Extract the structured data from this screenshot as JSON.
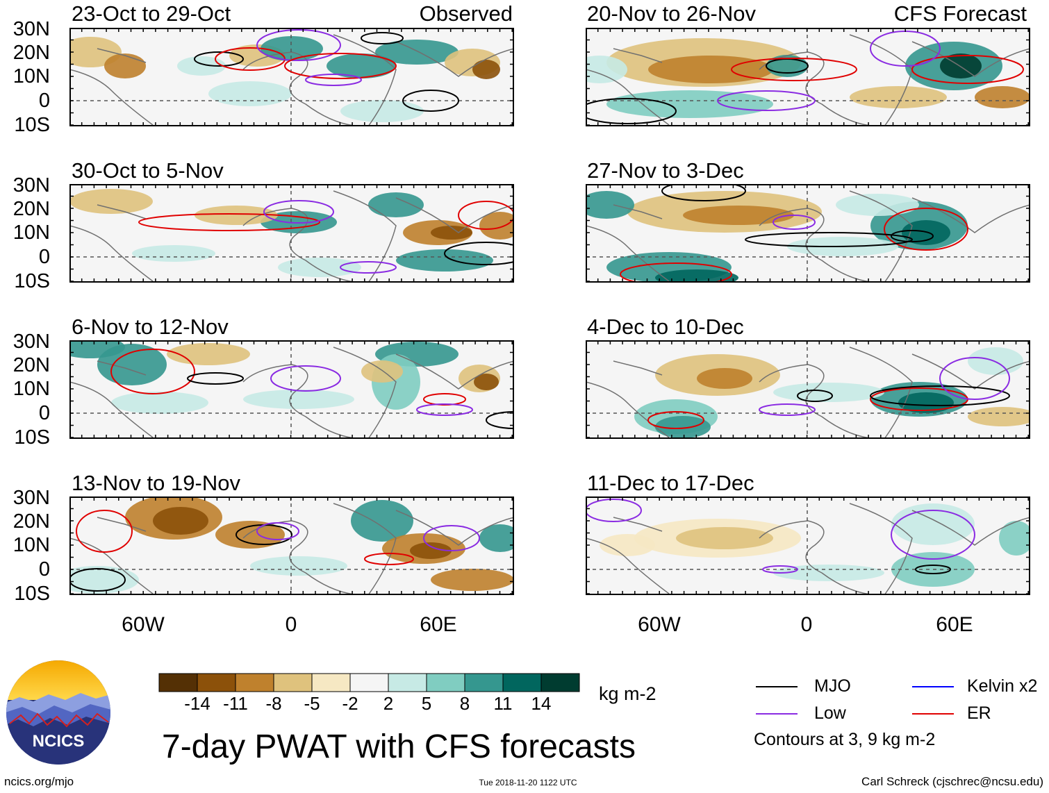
{
  "title": "7-day PWAT with CFS forecasts",
  "panels_left_label": "Observed",
  "panels_right_label": "CFS Forecast",
  "panels": [
    {
      "id": "p1",
      "period": "23-Oct to 29-Oct",
      "source": "Observed"
    },
    {
      "id": "p2",
      "period": "30-Oct to 5-Nov",
      "source": "Observed"
    },
    {
      "id": "p3",
      "period": "6-Nov to 12-Nov",
      "source": "Observed"
    },
    {
      "id": "p4",
      "period": "13-Nov to 19-Nov",
      "source": "Observed"
    },
    {
      "id": "p5",
      "period": "20-Nov to 26-Nov",
      "source": "CFS Forecast"
    },
    {
      "id": "p6",
      "period": "27-Nov to 3-Dec",
      "source": "CFS Forecast"
    },
    {
      "id": "p7",
      "period": "4-Dec to 10-Dec",
      "source": "CFS Forecast"
    },
    {
      "id": "p8",
      "period": "11-Dec to 17-Dec",
      "source": "CFS Forecast"
    }
  ],
  "lat_labels": [
    "30N",
    "20N",
    "10N",
    "0",
    "10S"
  ],
  "lon_labels": [
    "60W",
    "0",
    "60E"
  ],
  "colorbar": {
    "unit": "kg m-2",
    "tick_labels": [
      "-14",
      "-11",
      "-8",
      "-5",
      "-2",
      "2",
      "5",
      "8",
      "11",
      "14"
    ],
    "colors": [
      "#543005",
      "#8c510a",
      "#bf812d",
      "#dfc27d",
      "#f6e8c3",
      "#f5f5f5",
      "#c7eae5",
      "#80cdc1",
      "#35978f",
      "#01665e",
      "#003c30"
    ]
  },
  "legend": {
    "items": [
      {
        "label": "MJO",
        "color": "#000000"
      },
      {
        "label": "Kelvin x2",
        "color": "#0000ff"
      },
      {
        "label": "Low",
        "color": "#8a2be2"
      },
      {
        "label": "ER",
        "color": "#e00000"
      }
    ],
    "note": "Contours at 3, 9 kg m-2"
  },
  "logo_text": "NCICS",
  "footer": {
    "left": "ncics.org/mjo",
    "center": "Tue 2018-11-20 1122 UTC",
    "right": "Carl Schreck (cjschrec@ncsu.edu)"
  }
}
